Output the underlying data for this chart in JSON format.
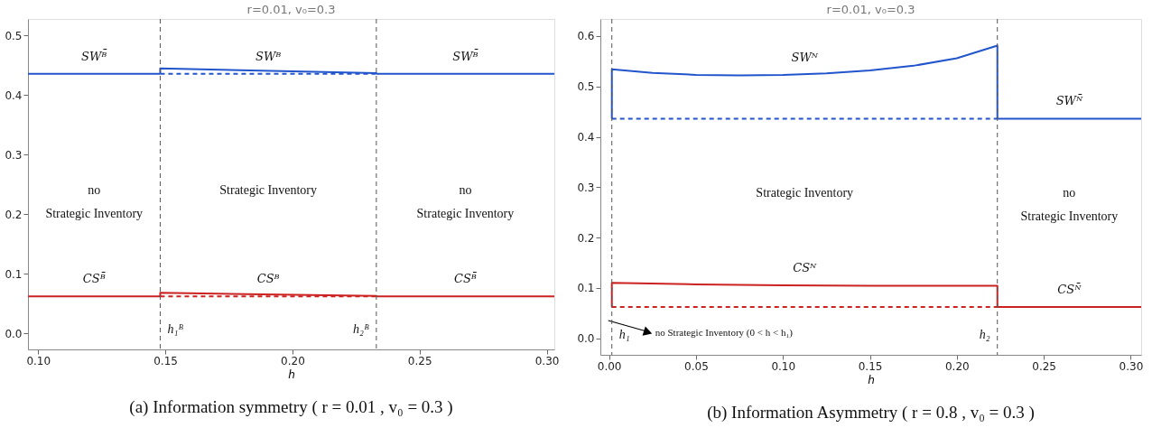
{
  "chart_data": [
    {
      "type": "line",
      "title": "r=0.01, v₀=0.3",
      "xlabel": "h",
      "xlim": [
        0.096,
        0.303
      ],
      "ylim": [
        -0.027,
        0.528
      ],
      "xticks": [
        {
          "value": 0.1,
          "label": "0.10"
        },
        {
          "value": 0.15,
          "label": "0.15"
        },
        {
          "value": 0.2,
          "label": "0.20"
        },
        {
          "value": 0.25,
          "label": "0.25"
        },
        {
          "value": 0.3,
          "label": "0.30"
        }
      ],
      "yticks": [
        {
          "value": 0,
          "label": "0.0"
        },
        {
          "value": 0.1,
          "label": "0.1"
        },
        {
          "value": 0.2,
          "label": "0.2"
        },
        {
          "value": 0.3,
          "label": "0.3"
        },
        {
          "value": 0.4,
          "label": "0.4"
        },
        {
          "value": 0.5,
          "label": "0.5"
        }
      ],
      "grid": false,
      "marker": "none",
      "series": [
        {
          "name": "SWᴮ̄",
          "color": "#2255cc",
          "line_style": "solid",
          "x": [
            0.096,
            0.148
          ],
          "values": [
            0.436,
            0.436
          ]
        },
        {
          "name": "SWᴮ",
          "color": "#2255cc",
          "line_style": "solid",
          "x": [
            0.148,
            0.148,
            0.233,
            0.233
          ],
          "values": [
            0.436,
            0.445,
            0.437,
            0.436
          ]
        },
        {
          "name": "SWᴮ̄",
          "color": "#2255cc",
          "line_style": "solid",
          "x": [
            0.233,
            0.303
          ],
          "values": [
            0.436,
            0.436
          ]
        },
        {
          "color": "#2255cc",
          "line_style": "dashed",
          "x": [
            0.148,
            0.233
          ],
          "values": [
            0.436,
            0.436
          ]
        },
        {
          "name": "CSᴮ̄",
          "color": "#cc2222",
          "line_style": "solid",
          "x": [
            0.096,
            0.148
          ],
          "values": [
            0.062,
            0.062
          ]
        },
        {
          "name": "CSᴮ",
          "color": "#cc2222",
          "line_style": "solid",
          "x": [
            0.148,
            0.148,
            0.233,
            0.233
          ],
          "values": [
            0.062,
            0.068,
            0.063,
            0.062
          ]
        },
        {
          "name": "CSᴮ̄",
          "color": "#cc2222",
          "line_style": "solid",
          "x": [
            0.233,
            0.303
          ],
          "values": [
            0.062,
            0.062
          ]
        },
        {
          "color": "#cc2222",
          "line_style": "dashed",
          "x": [
            0.148,
            0.233
          ],
          "values": [
            0.062,
            0.062
          ]
        }
      ],
      "ref_lines": [
        {
          "axis": "x",
          "value": 0.148,
          "label": "h₁ᴮ",
          "color": "#555555",
          "line_style": "dashed"
        },
        {
          "axis": "x",
          "value": 0.233,
          "label": "h₂ᴮ",
          "color": "#555555",
          "line_style": "dashed"
        }
      ],
      "annotations": [
        "no\nStrategic Inventory",
        "Strategic Inventory",
        "no\nStrategic Inventory",
        "(a) Information symmetry ( r = 0.01 ,   v₀ = 0.3 )"
      ]
    },
    {
      "type": "line",
      "title": "r=0.01, v₀=0.3",
      "xlabel": "h",
      "xlim": [
        -0.005,
        0.306
      ],
      "ylim": [
        -0.033,
        0.634
      ],
      "xticks": [
        {
          "value": 0,
          "label": "0.00"
        },
        {
          "value": 0.05,
          "label": "0.05"
        },
        {
          "value": 0.1,
          "label": "0.10"
        },
        {
          "value": 0.15,
          "label": "0.15"
        },
        {
          "value": 0.2,
          "label": "0.20"
        },
        {
          "value": 0.25,
          "label": "0.25"
        },
        {
          "value": 0.3,
          "label": "0.30"
        }
      ],
      "yticks": [
        {
          "value": 0,
          "label": "0.0"
        },
        {
          "value": 0.1,
          "label": "0.1"
        },
        {
          "value": 0.2,
          "label": "0.2"
        },
        {
          "value": 0.3,
          "label": "0.3"
        },
        {
          "value": 0.4,
          "label": "0.4"
        },
        {
          "value": 0.5,
          "label": "0.5"
        },
        {
          "value": 0.6,
          "label": "0.6"
        }
      ],
      "grid": false,
      "marker": "none",
      "series": [
        {
          "name": "SWᴺ",
          "color": "#2255cc",
          "line_style": "solid",
          "x": [
            0.0016,
            0.0016,
            0.025,
            0.05,
            0.075,
            0.1,
            0.125,
            0.15,
            0.175,
            0.2,
            0.2233,
            0.2233
          ],
          "values": [
            0.436,
            0.534,
            0.527,
            0.523,
            0.522,
            0.523,
            0.526,
            0.532,
            0.541,
            0.556,
            0.581,
            0.436
          ]
        },
        {
          "name": "SWᴺ̄",
          "color": "#2255cc",
          "line_style": "solid",
          "x": [
            0.2233,
            0.306
          ],
          "values": [
            0.436,
            0.436
          ]
        },
        {
          "color": "#2255cc",
          "line_style": "dashed",
          "x": [
            0.0016,
            0.2233
          ],
          "values": [
            0.436,
            0.436
          ]
        },
        {
          "name": "CSᴺ",
          "color": "#cc2222",
          "line_style": "solid",
          "x": [
            0.0016,
            0.0016,
            0.05,
            0.1,
            0.15,
            0.2233,
            0.2233
          ],
          "values": [
            0.062,
            0.11,
            0.107,
            0.105,
            0.104,
            0.104,
            0.062
          ]
        },
        {
          "name": "CSᴺ̄",
          "color": "#cc2222",
          "line_style": "solid",
          "x": [
            0.2233,
            0.306
          ],
          "values": [
            0.062,
            0.062
          ]
        },
        {
          "color": "#cc2222",
          "line_style": "dashed",
          "x": [
            0.0016,
            0.2233
          ],
          "values": [
            0.062,
            0.062
          ]
        }
      ],
      "ref_lines": [
        {
          "axis": "x",
          "value": 0.0016,
          "label": "h₁",
          "color": "#555555",
          "line_style": "dashed"
        },
        {
          "axis": "x",
          "value": 0.2233,
          "label": "h₂",
          "color": "#555555",
          "line_style": "dashed"
        }
      ],
      "annotations": [
        "no Strategic Inventory (0 < h < h₁)",
        "Strategic Inventory",
        "no\nStrategic Inventory",
        "(b) Information Asymmetry ( r = 0.8 ,   v₀ = 0.3 )"
      ]
    }
  ]
}
